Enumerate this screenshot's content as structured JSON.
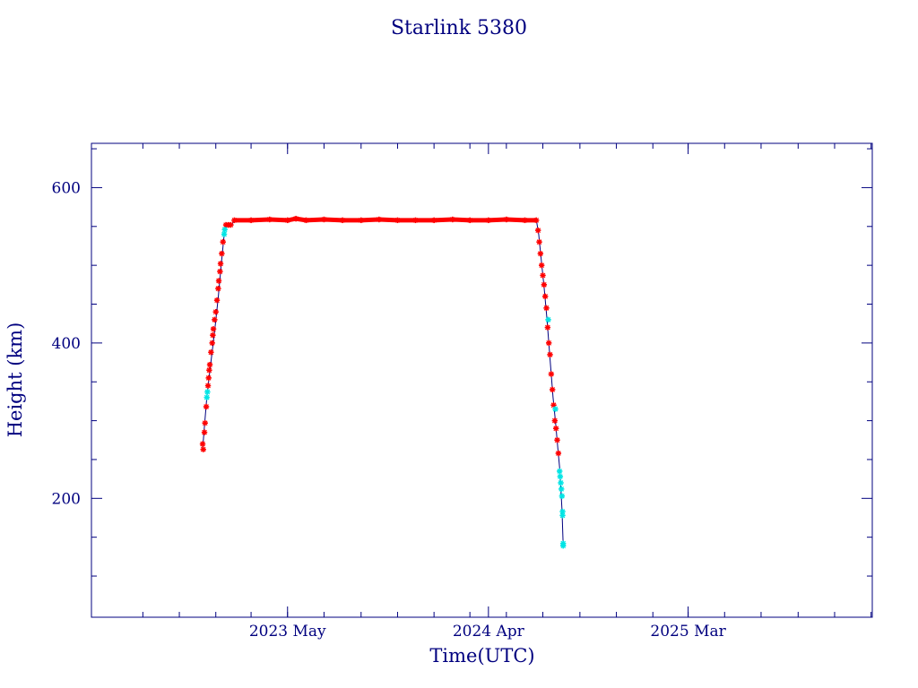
{
  "chart_data": {
    "type": "scatter",
    "title": "Starlink 5380",
    "xlabel": "Time(UTC)",
    "ylabel": "Height (km)",
    "xlim": [
      "2022-06-07",
      "2026-01-03"
    ],
    "ylim": [
      47,
      657
    ],
    "x_ticks": [
      {
        "date": "2023-05-01",
        "label": "2023 May"
      },
      {
        "date": "2024-04-01",
        "label": "2024 Apr"
      },
      {
        "date": "2025-03-01",
        "label": "2025 Mar"
      }
    ],
    "y_ticks": [
      200,
      400,
      600
    ],
    "grid": false,
    "colors": {
      "axis": "#00007f",
      "primary_marker": "#ff0000",
      "secondary_marker": "#00e5e5",
      "connector_line": "#00007f"
    },
    "series": [
      {
        "style": "line",
        "color": "#00007f",
        "points": [
          [
            "2022-12-10",
            263
          ],
          [
            "2022-12-13",
            292
          ],
          [
            "2022-12-17",
            330
          ],
          [
            "2022-12-23",
            370
          ],
          [
            "2022-12-30",
            415
          ],
          [
            "2023-01-05",
            458
          ],
          [
            "2023-01-10",
            500
          ],
          [
            "2023-01-15",
            540
          ],
          [
            "2023-01-17",
            552
          ],
          [
            "2023-01-28",
            552
          ],
          [
            "2023-02-01",
            559
          ],
          [
            "2024-06-20",
            559
          ],
          [
            "2024-06-24",
            540
          ],
          [
            "2024-06-28",
            510
          ],
          [
            "2024-07-03",
            472
          ],
          [
            "2024-07-08",
            430
          ],
          [
            "2024-07-13",
            380
          ],
          [
            "2024-07-18",
            330
          ],
          [
            "2024-07-22",
            300
          ],
          [
            "2024-07-26",
            265
          ],
          [
            "2024-07-29",
            240
          ],
          [
            "2024-07-31",
            215
          ],
          [
            "2024-08-02",
            185
          ],
          [
            "2024-08-04",
            140
          ]
        ]
      },
      {
        "style": "markers",
        "color": "#ff0000",
        "points": [
          [
            "2022-12-10",
            270
          ],
          [
            "2022-12-11",
            263
          ],
          [
            "2022-12-13",
            285
          ],
          [
            "2022-12-14",
            297
          ],
          [
            "2022-12-16",
            318
          ],
          [
            "2022-12-19",
            345
          ],
          [
            "2022-12-20",
            355
          ],
          [
            "2022-12-21",
            365
          ],
          [
            "2022-12-22",
            372
          ],
          [
            "2022-12-24",
            388
          ],
          [
            "2022-12-26",
            400
          ],
          [
            "2022-12-27",
            410
          ],
          [
            "2022-12-28",
            418
          ],
          [
            "2022-12-30",
            430
          ],
          [
            "2023-01-01",
            440
          ],
          [
            "2023-01-03",
            455
          ],
          [
            "2023-01-05",
            470
          ],
          [
            "2023-01-06",
            480
          ],
          [
            "2023-01-08",
            492
          ],
          [
            "2023-01-09",
            502
          ],
          [
            "2023-01-11",
            515
          ],
          [
            "2023-01-13",
            530
          ],
          [
            "2023-01-18",
            552
          ],
          [
            "2023-01-22",
            552
          ],
          [
            "2023-01-26",
            552
          ],
          [
            "2023-02-01",
            558
          ],
          [
            "2023-03-01",
            558
          ],
          [
            "2023-04-01",
            559
          ],
          [
            "2023-05-01",
            558
          ],
          [
            "2023-05-15",
            560
          ],
          [
            "2023-06-01",
            558
          ],
          [
            "2023-07-01",
            559
          ],
          [
            "2023-08-01",
            558
          ],
          [
            "2023-09-01",
            558
          ],
          [
            "2023-10-01",
            559
          ],
          [
            "2023-11-01",
            558
          ],
          [
            "2023-12-01",
            558
          ],
          [
            "2024-01-01",
            558
          ],
          [
            "2024-02-01",
            559
          ],
          [
            "2024-03-01",
            558
          ],
          [
            "2024-04-01",
            558
          ],
          [
            "2024-05-01",
            559
          ],
          [
            "2024-06-01",
            558
          ],
          [
            "2024-06-20",
            558
          ],
          [
            "2024-06-23",
            545
          ],
          [
            "2024-06-25",
            530
          ],
          [
            "2024-06-27",
            515
          ],
          [
            "2024-06-29",
            500
          ],
          [
            "2024-07-01",
            487
          ],
          [
            "2024-07-03",
            475
          ],
          [
            "2024-07-05",
            460
          ],
          [
            "2024-07-07",
            445
          ],
          [
            "2024-07-09",
            420
          ],
          [
            "2024-07-11",
            400
          ],
          [
            "2024-07-13",
            385
          ],
          [
            "2024-07-15",
            360
          ],
          [
            "2024-07-17",
            340
          ],
          [
            "2024-07-19",
            320
          ],
          [
            "2024-07-21",
            300
          ],
          [
            "2024-07-23",
            290
          ],
          [
            "2024-07-25",
            275
          ],
          [
            "2024-07-27",
            258
          ]
        ]
      },
      {
        "style": "markers",
        "color": "#00e5e5",
        "points": [
          [
            "2022-12-17",
            330
          ],
          [
            "2022-12-18",
            337
          ],
          [
            "2023-01-15",
            540
          ],
          [
            "2023-01-16",
            546
          ],
          [
            "2024-07-10",
            430
          ],
          [
            "2024-07-22",
            315
          ],
          [
            "2024-07-29",
            235
          ],
          [
            "2024-07-30",
            228
          ],
          [
            "2024-07-31",
            220
          ],
          [
            "2024-08-01",
            212
          ],
          [
            "2024-08-02",
            203
          ],
          [
            "2024-08-03",
            183
          ],
          [
            "2024-08-03",
            178
          ],
          [
            "2024-08-04",
            142
          ],
          [
            "2024-08-04",
            139
          ]
        ]
      }
    ]
  }
}
